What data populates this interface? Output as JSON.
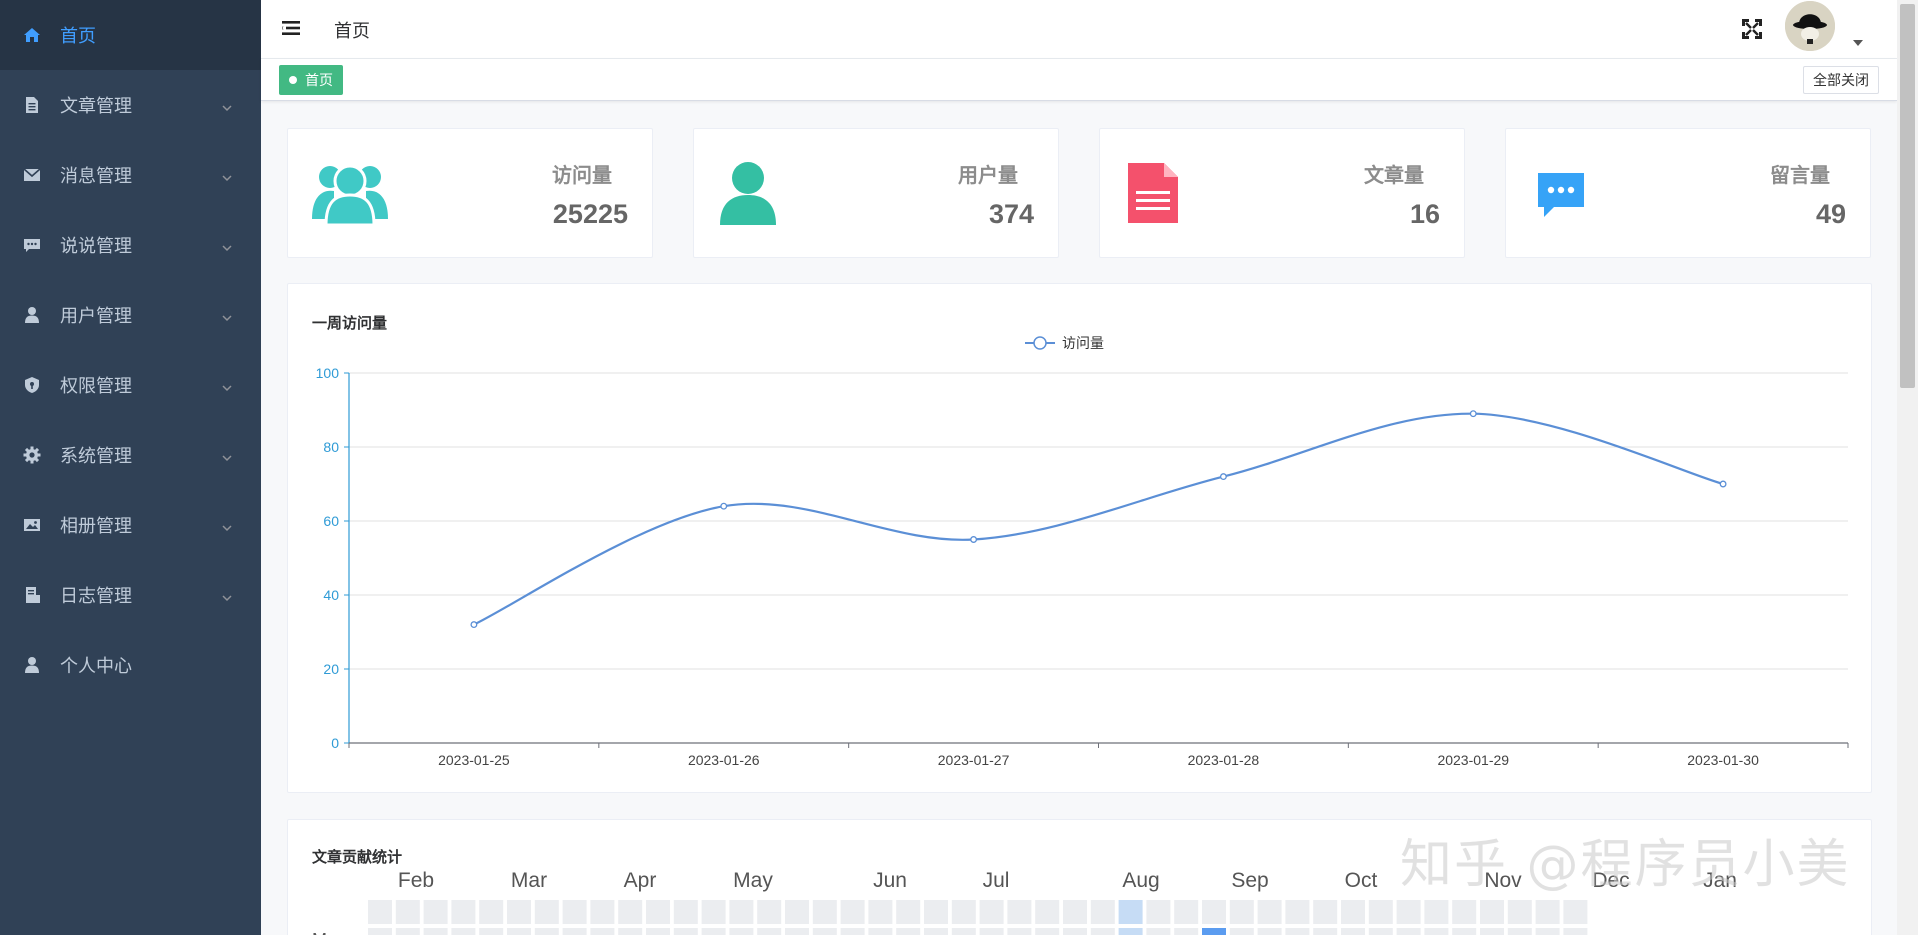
{
  "sidebar": {
    "items": [
      {
        "label": "首页",
        "icon": "home-icon",
        "active": true,
        "expandable": false
      },
      {
        "label": "文章管理",
        "icon": "document-icon",
        "active": false,
        "expandable": true
      },
      {
        "label": "消息管理",
        "icon": "mail-icon",
        "active": false,
        "expandable": true
      },
      {
        "label": "说说管理",
        "icon": "chat-icon",
        "active": false,
        "expandable": true
      },
      {
        "label": "用户管理",
        "icon": "user-icon",
        "active": false,
        "expandable": true
      },
      {
        "label": "权限管理",
        "icon": "shield-icon",
        "active": false,
        "expandable": true
      },
      {
        "label": "系统管理",
        "icon": "gear-icon",
        "active": false,
        "expandable": true
      },
      {
        "label": "相册管理",
        "icon": "image-icon",
        "active": false,
        "expandable": true
      },
      {
        "label": "日志管理",
        "icon": "log-icon",
        "active": false,
        "expandable": true
      },
      {
        "label": "个人中心",
        "icon": "person-icon",
        "active": false,
        "expandable": false
      }
    ]
  },
  "header": {
    "breadcrumb": "首页",
    "tag_label": "首页",
    "close_all_label": "全部关闭"
  },
  "stats": [
    {
      "label": "访问量",
      "value": "25225",
      "icon": "users-icon",
      "color": "#40c9c6"
    },
    {
      "label": "用户量",
      "value": "374",
      "icon": "user-icon",
      "color": "#34bfa3"
    },
    {
      "label": "文章量",
      "value": "16",
      "icon": "article-icon",
      "color": "#f4516c"
    },
    {
      "label": "留言量",
      "value": "49",
      "icon": "message-icon",
      "color": "#36a3f7"
    }
  ],
  "chart_data": {
    "type": "line",
    "title": "一周访问量",
    "x": [
      "2023-01-25",
      "2023-01-26",
      "2023-01-27",
      "2023-01-28",
      "2023-01-29",
      "2023-01-30"
    ],
    "series": [
      {
        "name": "访问量",
        "values": [
          32,
          64,
          55,
          72,
          89,
          70
        ],
        "color": "#5b8fd6"
      }
    ],
    "ylim": [
      0,
      100
    ],
    "yticks": [
      0,
      20,
      40,
      60,
      80,
      100
    ],
    "smooth": true,
    "legend": "top-center",
    "grid": true
  },
  "contribution": {
    "title": "文章贡献统计",
    "months": [
      "Feb",
      "Mar",
      "Apr",
      "May",
      "Jun",
      "Jul",
      "Aug",
      "Sep",
      "Oct",
      "Nov",
      "Dec",
      "Jan"
    ],
    "weekday_label": "M"
  },
  "watermark": "知乎 @程序员小美"
}
